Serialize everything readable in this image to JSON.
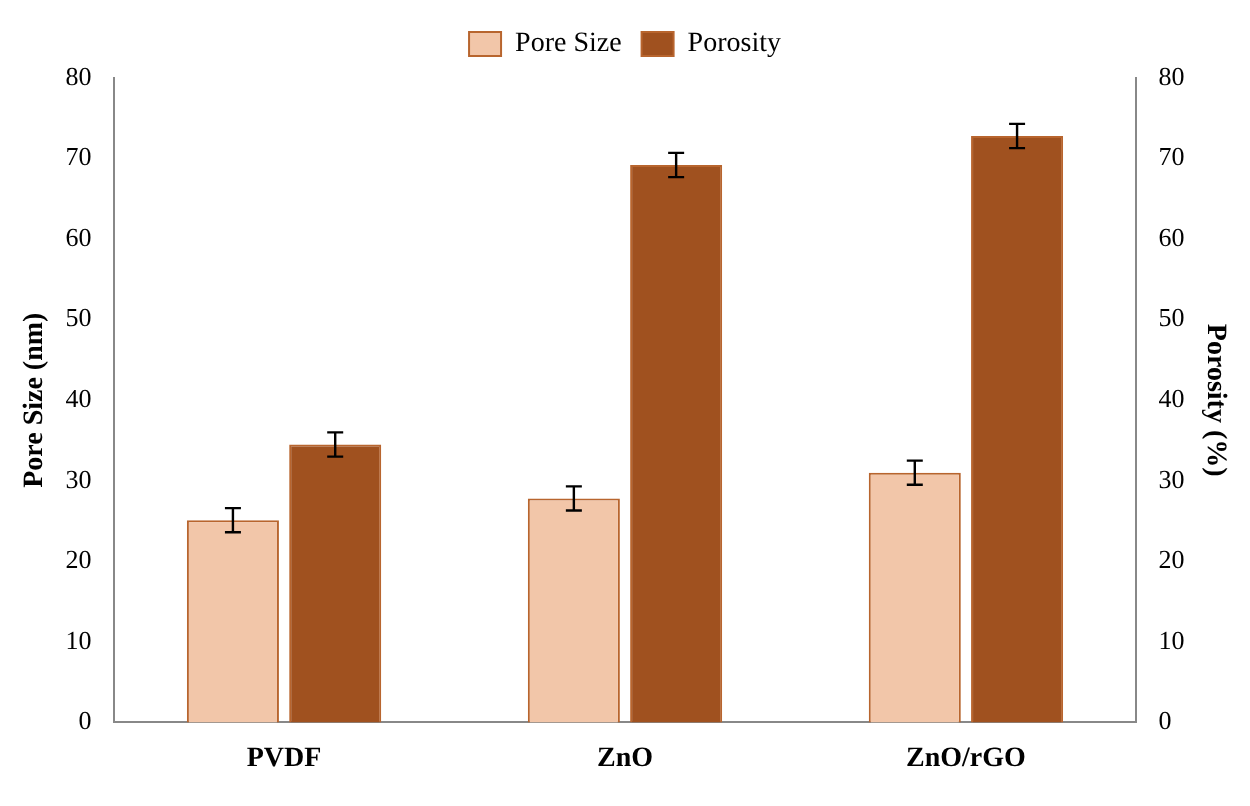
{
  "chart_data": {
    "type": "bar",
    "categories": [
      "PVDF",
      "ZnO",
      "ZnO/rGO"
    ],
    "ylabel": "Pore Size (nm)",
    "y2label": "Porosity (%)",
    "ylim": [
      0,
      80
    ],
    "yticks": [
      0,
      10,
      20,
      30,
      40,
      50,
      60,
      70,
      80
    ],
    "y2lim": [
      0,
      80
    ],
    "y2ticks": [
      0,
      10,
      20,
      30,
      40,
      50,
      60,
      70,
      80
    ],
    "series": [
      {
        "name": "Pore Size",
        "color": "#f2c6a9",
        "values": [
          25.1,
          27.8,
          31.0
        ],
        "errors": [
          1.5,
          1.5,
          1.5
        ]
      },
      {
        "name": "Porosity",
        "color": "#a0511f",
        "values": [
          34.5,
          69.2,
          72.8
        ],
        "errors": [
          1.5,
          1.5,
          1.5
        ],
        "axis": "y2"
      }
    ],
    "grid": false,
    "legend": "top"
  }
}
